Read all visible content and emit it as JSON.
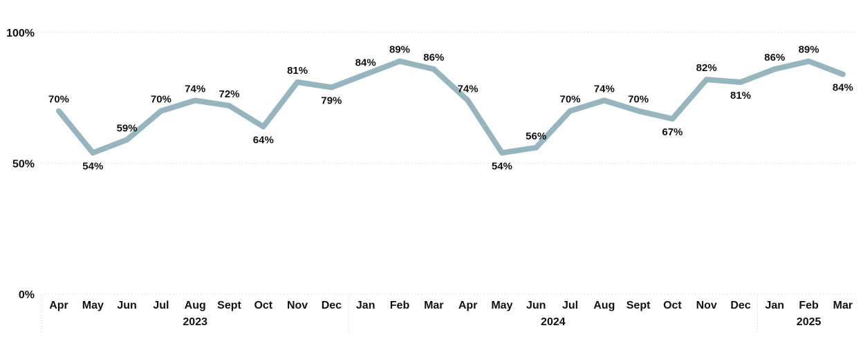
{
  "chart_data": {
    "type": "line",
    "title": "",
    "xlabel": "",
    "ylabel": "",
    "ylim": [
      0,
      100
    ],
    "y_ticks": [
      {
        "value": 0,
        "label": "0%"
      },
      {
        "value": 50,
        "label": "50%"
      },
      {
        "value": 100,
        "label": "100%"
      }
    ],
    "grid": "horizontal-dotted",
    "legend": "none",
    "line_color": "#95b5bf",
    "categories": [
      "Apr",
      "May",
      "Jun",
      "Jul",
      "Aug",
      "Sept",
      "Oct",
      "Nov",
      "Dec",
      "Jan",
      "Feb",
      "Mar",
      "Apr",
      "May",
      "Jun",
      "Jul",
      "Aug",
      "Sept",
      "Oct",
      "Nov",
      "Dec",
      "Jan",
      "Feb",
      "Mar"
    ],
    "years": [
      {
        "label": "2023",
        "start": 0,
        "end": 8
      },
      {
        "label": "2024",
        "start": 9,
        "end": 20
      },
      {
        "label": "2025",
        "start": 21,
        "end": 23
      }
    ],
    "series": [
      {
        "values": [
          70,
          54,
          59,
          70,
          74,
          72,
          64,
          81,
          79,
          84,
          89,
          86,
          74,
          54,
          56,
          70,
          74,
          70,
          67,
          82,
          81,
          86,
          89,
          84
        ],
        "data_labels": [
          "70%",
          "54%",
          "59%",
          "70%",
          "74%",
          "72%",
          "64%",
          "81%",
          "79%",
          "84%",
          "89%",
          "86%",
          "74%",
          "54%",
          "56%",
          "70%",
          "74%",
          "70%",
          "67%",
          "82%",
          "81%",
          "86%",
          "89%",
          "84%"
        ]
      }
    ]
  }
}
